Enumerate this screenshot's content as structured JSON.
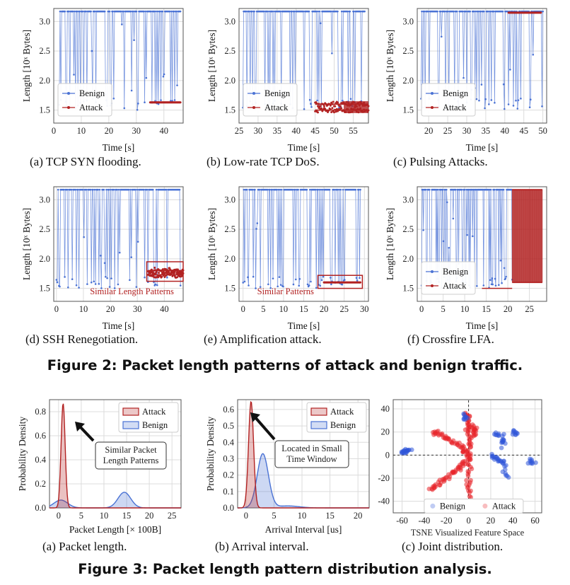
{
  "figure2": {
    "caption": "Figure 2: Packet length patterns of attack and benign traffic.",
    "ylabel": "Length [10ˣ Bytes]",
    "xlabel": "Time [s]",
    "colors": {
      "benign": "#4a72d4",
      "attack": "#b22222"
    },
    "panels": [
      {
        "id": "a",
        "caption": "(a)  TCP SYN flooding.",
        "legend": [
          "Benign",
          "Attack"
        ],
        "xlim": [
          0,
          47
        ],
        "xticks": [
          0,
          10,
          20,
          30,
          40
        ],
        "ylim": [
          1.28,
          3.22
        ],
        "yticks": [
          1.5,
          2.0,
          2.5,
          3.0
        ],
        "benign_range": [
          2,
          46
        ],
        "attack_range": [
          35,
          46
        ],
        "attack_levels": [
          1.63
        ],
        "annotation": ""
      },
      {
        "id": "b",
        "caption": "(b)  Low-rate TCP DoS.",
        "legend": [
          "Benign",
          "Attack"
        ],
        "xlim": [
          25,
          59
        ],
        "xticks": [
          25,
          30,
          35,
          40,
          45,
          50,
          55
        ],
        "ylim": [
          1.28,
          3.22
        ],
        "yticks": [
          1.5,
          2.0,
          2.5,
          3.0
        ],
        "benign_range": [
          26,
          58
        ],
        "attack_range": [
          45,
          59
        ],
        "attack_levels": [
          1.5,
          1.6
        ],
        "annotation": ""
      },
      {
        "id": "c",
        "caption": "(c)  Pulsing Attacks.",
        "legend": [
          "Benign",
          "Attack"
        ],
        "xlim": [
          17,
          51
        ],
        "xticks": [
          20,
          25,
          30,
          35,
          40,
          45,
          50
        ],
        "ylim": [
          1.28,
          3.22
        ],
        "yticks": [
          1.5,
          2.0,
          2.5,
          3.0
        ],
        "benign_range": [
          18,
          50
        ],
        "attack_range": [
          41,
          49.5
        ],
        "attack_levels": [
          3.15
        ],
        "annotation": ""
      },
      {
        "id": "d",
        "caption": "(d)  SSH Renegotiation.",
        "legend": [],
        "xlim": [
          -1,
          47
        ],
        "xticks": [
          0,
          10,
          20,
          30,
          40
        ],
        "ylim": [
          1.28,
          3.22
        ],
        "yticks": [
          1.5,
          2.0,
          2.5,
          3.0
        ],
        "benign_range": [
          0,
          46
        ],
        "attack_range": [
          34,
          47
        ],
        "attack_levels": [
          1.73,
          1.8
        ],
        "annotation": "Similar Length Patterns"
      },
      {
        "id": "e",
        "caption": "(e)  Amplification attack.",
        "legend": [],
        "xlim": [
          -1,
          31
        ],
        "xticks": [
          0,
          5,
          10,
          15,
          20,
          25,
          30
        ],
        "ylim": [
          1.28,
          3.22
        ],
        "yticks": [
          1.5,
          2.0,
          2.5,
          3.0
        ],
        "benign_range": [
          0,
          29
        ],
        "attack_range": [
          20,
          29
        ],
        "attack_levels": [
          1.6
        ],
        "annotation": "Similar Patterns"
      },
      {
        "id": "f",
        "caption": "(f)  Crossfire LFA.",
        "legend": [
          "Benign",
          "Attack"
        ],
        "xlim": [
          -1,
          29
        ],
        "xticks": [
          0,
          5,
          10,
          15,
          20,
          25
        ],
        "ylim": [
          1.28,
          3.22
        ],
        "yticks": [
          1.5,
          2.0,
          2.5,
          3.0
        ],
        "benign_range": [
          0,
          21
        ],
        "attack_range": [
          21,
          28
        ],
        "attack_levels": [
          1.6,
          3.17
        ],
        "annotation": ""
      }
    ]
  },
  "figure3": {
    "caption": "Figure 3: Packet length pattern distribution analysis.",
    "panels": [
      {
        "id": "a",
        "caption": "(a)  Packet length.",
        "xlabel": "Packet Length [× 100B]",
        "ylabel": "Probability Density",
        "xlim": [
          -2,
          27
        ],
        "xticks": [
          0,
          5,
          10,
          15,
          20,
          25
        ],
        "ylim": [
          0,
          0.9
        ],
        "yticks": [
          0.0,
          0.2,
          0.4,
          0.6,
          0.8
        ],
        "legend": [
          "Attack",
          "Benign"
        ],
        "annotation": [
          "Similar Packet",
          "Length Patterns"
        ],
        "attack_peaks": [
          {
            "mu": 1.0,
            "sigma": 0.45,
            "amp": 0.87
          }
        ],
        "benign_peaks": [
          {
            "mu": 0.5,
            "sigma": 1.5,
            "amp": 0.065
          },
          {
            "mu": 14.5,
            "sigma": 1.4,
            "amp": 0.13
          }
        ]
      },
      {
        "id": "b",
        "caption": "(b)  Arrival interval.",
        "xlabel": "Arrival Interval [us]",
        "ylabel": "Probability Density",
        "xlim": [
          -1.5,
          22
        ],
        "xticks": [
          0,
          5,
          10,
          15,
          20
        ],
        "ylim": [
          0,
          0.66
        ],
        "yticks": [
          0.0,
          0.1,
          0.2,
          0.3,
          0.4,
          0.5,
          0.6
        ],
        "legend": [
          "Attack",
          "Benign"
        ],
        "annotation": [
          "Located in Small",
          "Time Window"
        ],
        "attack_peaks": [
          {
            "mu": 0.9,
            "sigma": 0.45,
            "amp": 0.65
          }
        ],
        "benign_peaks": [
          {
            "mu": 3.0,
            "sigma": 1.0,
            "amp": 0.33
          },
          {
            "mu": 7.5,
            "sigma": 2.0,
            "amp": 0.012
          }
        ]
      },
      {
        "id": "c",
        "caption": "(c)  Joint distribution.",
        "xlabel": "TSNE Visualized Feature Space",
        "xlim": [
          -68,
          66
        ],
        "xticks": [
          -60,
          -40,
          -20,
          0,
          20,
          40,
          60
        ],
        "ylim": [
          -50,
          48
        ],
        "yticks": [
          -40,
          -20,
          0,
          20,
          40
        ],
        "legend": [
          "Benign",
          "Attack"
        ]
      }
    ]
  }
}
